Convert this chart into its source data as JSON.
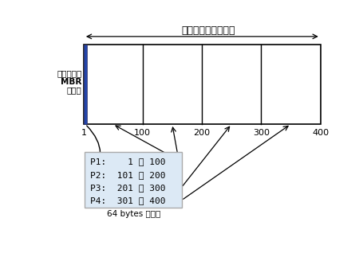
{
  "title_top": "全部硬碟的磁柱區間",
  "left_label_line1": "第一磁區的",
  "left_label_line2": "MBR",
  "left_label_line3": "分割表",
  "partitions": [
    1,
    100,
    200,
    300,
    400
  ],
  "box_text_lines": [
    "P1:    1 ～ 100",
    "P2:  101 ～ 200",
    "P3:  201 ～ 300",
    "P4:  301 ～ 400"
  ],
  "box_label": "64 bytes 分割表",
  "mbr_color": "#2244aa",
  "box_bg": "#dce9f5",
  "box_edge": "#aaaaaa",
  "font_size_main": 8,
  "font_size_box": 8,
  "font_size_label": 7.5,
  "font_size_title": 9
}
